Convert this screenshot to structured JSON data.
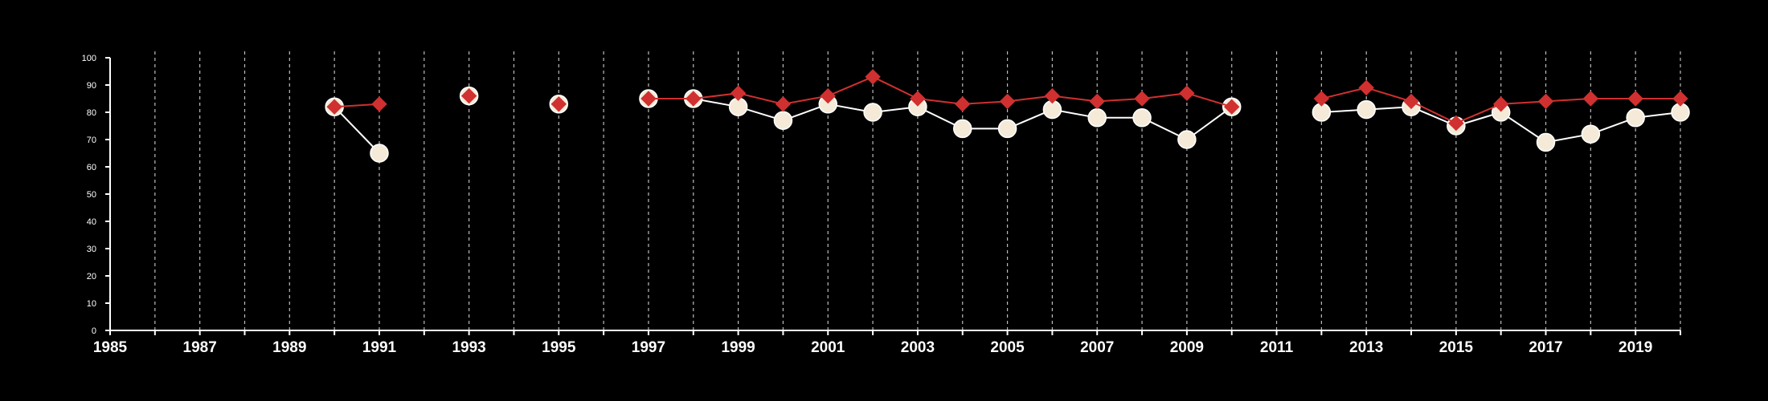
{
  "chart_data": {
    "type": "line",
    "title": "",
    "xlabel": "",
    "ylabel": "",
    "xlim": [
      1985,
      2020
    ],
    "ylim": [
      0,
      100
    ],
    "x_ticks": [
      1985,
      1987,
      1989,
      1991,
      1993,
      1995,
      1997,
      1999,
      2001,
      2003,
      2005,
      2007,
      2009,
      2011,
      2013,
      2015,
      2017,
      2019
    ],
    "y_ticks": [
      0,
      10,
      20,
      30,
      40,
      50,
      60,
      70,
      80,
      90,
      100
    ],
    "vertical_gridlines": "dashed, every year from 1986 to 2020",
    "x": [
      1990,
      1991,
      1993,
      1995,
      1997,
      1998,
      1999,
      2000,
      2001,
      2002,
      2003,
      2004,
      2005,
      2006,
      2007,
      2008,
      2009,
      2010,
      2012,
      2013,
      2014,
      2015,
      2016,
      2017,
      2018,
      2019,
      2020
    ],
    "series": [
      {
        "marker": "circle",
        "color": "#f5ead8",
        "line_color": "#ffffff",
        "values": [
          82,
          65,
          86,
          83,
          85,
          85,
          82,
          77,
          83,
          80,
          82,
          74,
          74,
          81,
          78,
          78,
          70,
          82,
          80,
          81,
          82,
          75,
          80,
          69,
          72,
          78,
          80
        ]
      },
      {
        "marker": "diamond",
        "color": "#d03030",
        "line_color": "#d03030",
        "values": [
          82,
          83,
          86,
          83,
          85,
          85,
          87,
          83,
          86,
          93,
          85,
          83,
          84,
          86,
          84,
          85,
          87,
          82,
          85,
          89,
          84,
          76,
          83,
          84,
          85,
          85,
          85
        ]
      }
    ]
  }
}
